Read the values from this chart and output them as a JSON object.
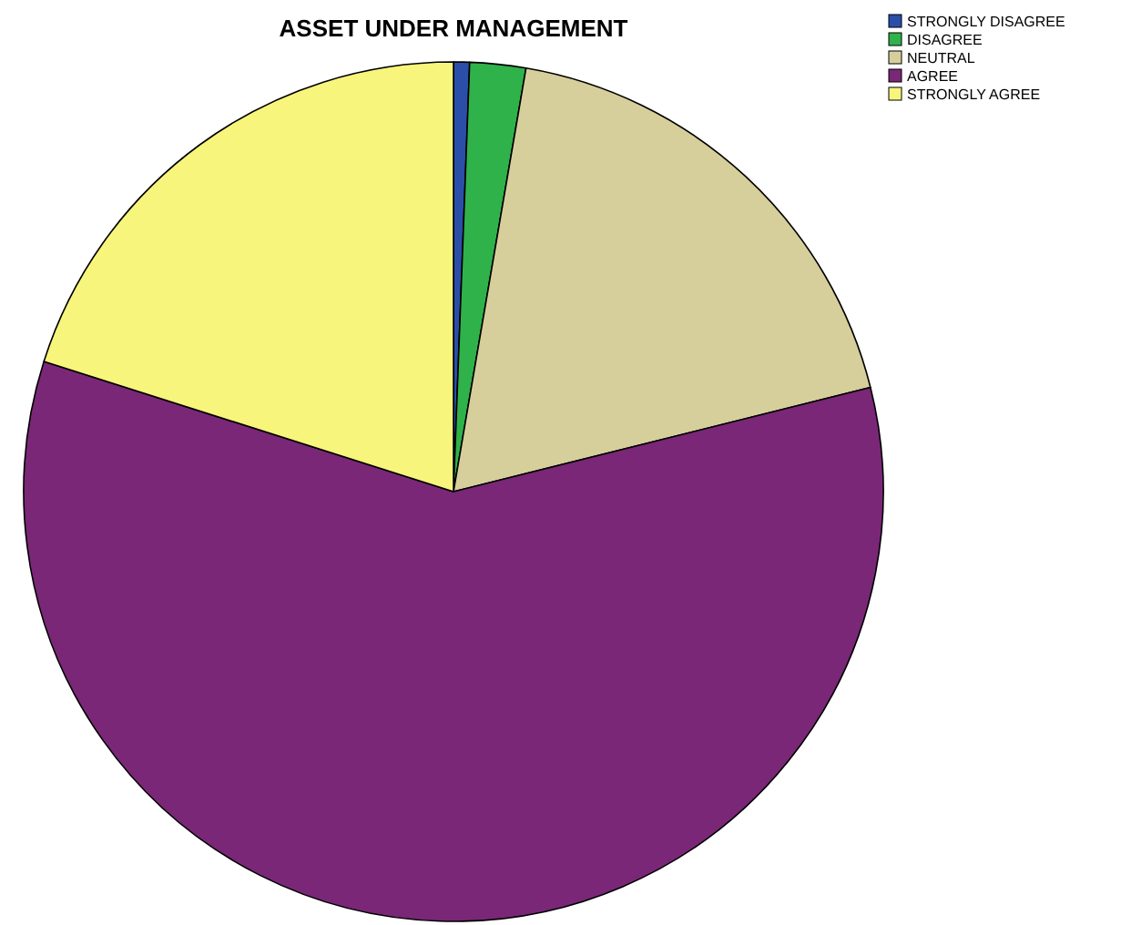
{
  "chart_data": {
    "type": "pie",
    "title": "ASSET UNDER MANAGEMENT",
    "categories": [
      "STRONGLY DISAGREE",
      "DISAGREE",
      "NEUTRAL",
      "AGREE",
      "STRONGLY AGREE"
    ],
    "values": [
      0.6,
      2.1,
      18.4,
      58.8,
      20.1
    ],
    "colors": [
      "#2b4fa8",
      "#2fb24a",
      "#d6cf9c",
      "#7a2777",
      "#f7f57c"
    ],
    "legend": "top right"
  }
}
